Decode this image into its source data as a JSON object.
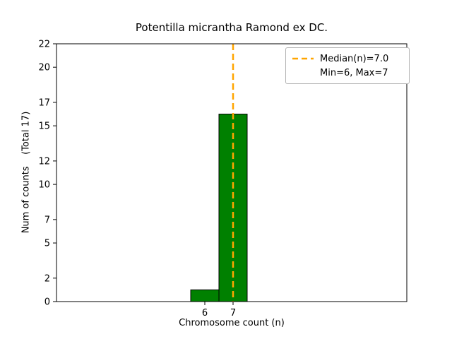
{
  "chart_data": {
    "type": "bar",
    "title": "Potentilla micrantha Ramond ex DC.",
    "xlabel": "Chromosome count (n)",
    "ylabel": "Num of counts    (Total 17)",
    "categories": [
      6,
      7
    ],
    "values": [
      1,
      16
    ],
    "bar_width": 1,
    "bar_color": "#008000",
    "bar_edge_color": "#000000",
    "xlim": [
      0.75,
      13.15
    ],
    "ylim": [
      0,
      22
    ],
    "xticks": [
      6,
      7
    ],
    "yticks": [
      0,
      2,
      5,
      7,
      10,
      12,
      15,
      17,
      20,
      22
    ],
    "grid": false,
    "median_line": {
      "x": 7.0,
      "color": "#ffa500",
      "style": "dashed",
      "label": "Median(n)=7.0"
    },
    "annotation": "Min=6, Max=7",
    "legend_position": "upper right",
    "total_counts": 17
  }
}
